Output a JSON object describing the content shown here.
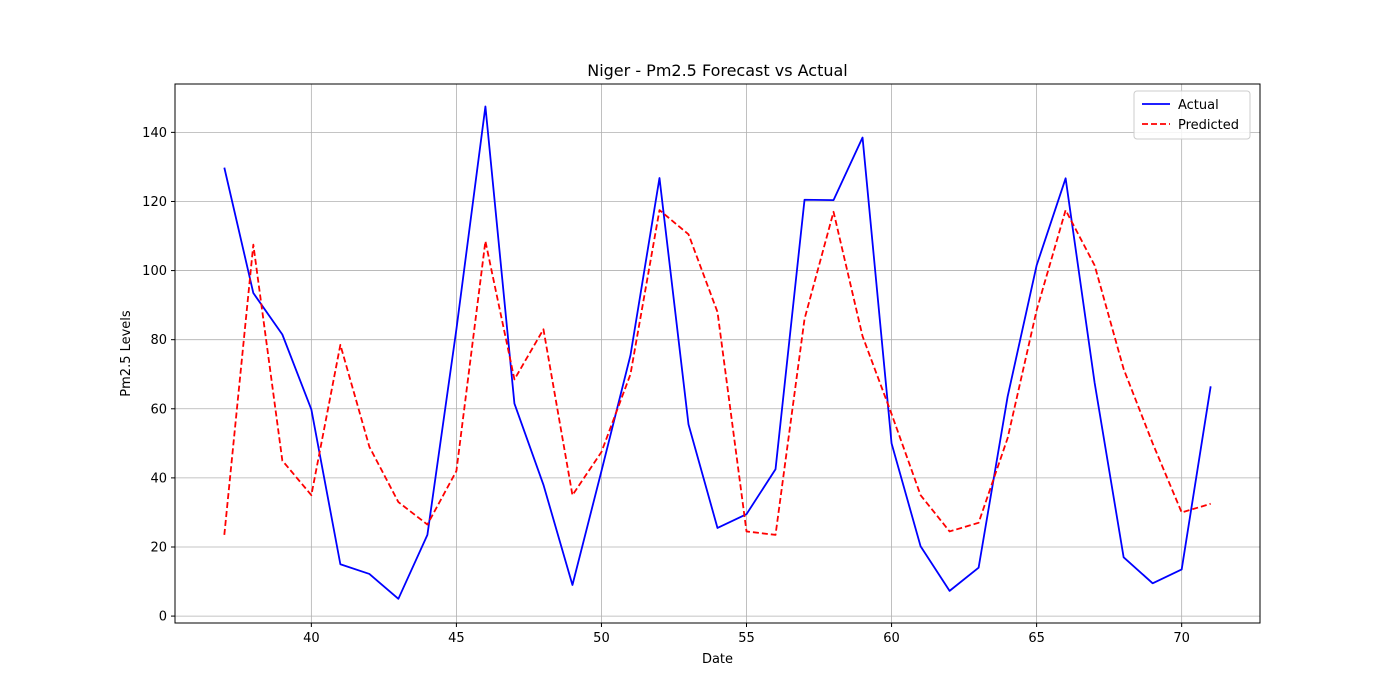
{
  "chart_data": {
    "type": "line",
    "title": "Niger - Pm2.5 Forecast vs Actual",
    "xlabel": "Date",
    "ylabel": "Pm2.5 Levels",
    "xlim": [
      35.3,
      72.7
    ],
    "ylim": [
      -2,
      154
    ],
    "xticks": [
      40,
      45,
      50,
      55,
      60,
      65,
      70
    ],
    "yticks": [
      0,
      20,
      40,
      60,
      80,
      100,
      120,
      140
    ],
    "grid": true,
    "legend_position": "top-right",
    "x": [
      37,
      38,
      39,
      40,
      41,
      42,
      43,
      44,
      45,
      46,
      47,
      48,
      49,
      50,
      51,
      52,
      53,
      54,
      55,
      56,
      57,
      58,
      59,
      60,
      61,
      62,
      63,
      64,
      65,
      66,
      67,
      68,
      69,
      70,
      71
    ],
    "series": [
      {
        "name": "Actual",
        "color": "#0000ff",
        "style": "solid",
        "values": [
          129.8,
          93.5,
          81.5,
          59.8,
          15,
          12.2,
          5,
          23.5,
          83,
          147.5,
          61.5,
          38,
          9,
          42,
          75.5,
          126.8,
          55.5,
          25.5,
          29.5,
          42.5,
          120.5,
          120.4,
          138.5,
          50,
          20.2,
          7.3,
          14,
          63.5,
          101.5,
          126.7,
          67.5,
          17,
          9.5,
          13.5,
          66.5
        ]
      },
      {
        "name": "Predicted",
        "color": "#ff0000",
        "style": "dashed",
        "values": [
          23.5,
          107.5,
          45,
          35,
          78.5,
          49,
          33,
          26.5,
          42,
          108.5,
          68.5,
          83,
          35,
          47.5,
          70,
          117.5,
          110.5,
          88,
          24.5,
          23.5,
          86,
          117,
          81,
          58.5,
          35,
          24.5,
          27,
          51.5,
          88.5,
          117.5,
          101.5,
          71.5,
          50,
          30,
          32.5
        ]
      }
    ]
  }
}
